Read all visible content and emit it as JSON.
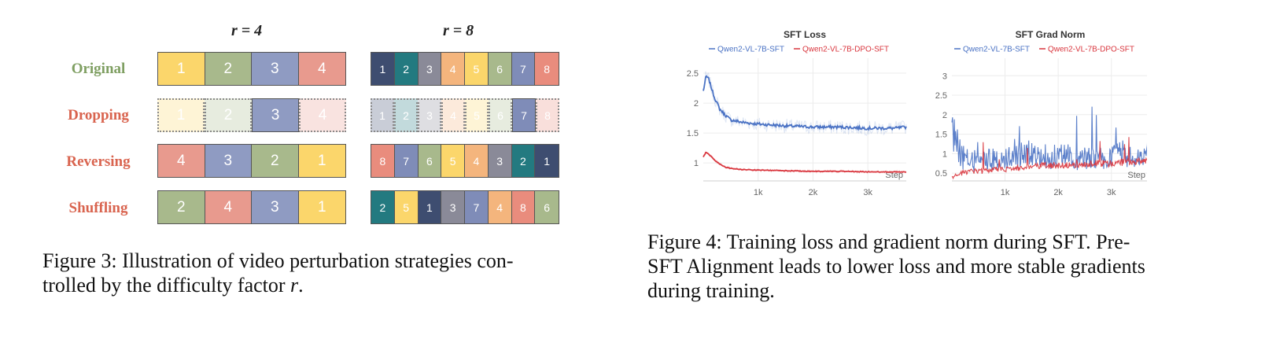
{
  "fig3": {
    "r4_label": "r = 4",
    "r8_label": "r = 8",
    "palette": {
      "c1": "#fbd66b",
      "c2": "#a8b98c",
      "c3": "#8f9bc2",
      "c4": "#e89a8e",
      "k1": "#3e4d70",
      "k2": "#237a80",
      "k3": "#8a8a98",
      "k4": "#f4b57d",
      "k5": "#fbd66b",
      "k6": "#a8b98c",
      "k7": "#7f8cb8",
      "k8": "#e98c7d"
    },
    "rows": [
      {
        "label": "Original",
        "color": "#7f9f62",
        "r4": [
          {
            "n": "1",
            "c": "c1"
          },
          {
            "n": "2",
            "c": "c2"
          },
          {
            "n": "3",
            "c": "c3"
          },
          {
            "n": "4",
            "c": "c4"
          }
        ],
        "r8": [
          {
            "n": "1",
            "c": "k1"
          },
          {
            "n": "2",
            "c": "k2"
          },
          {
            "n": "3",
            "c": "k3"
          },
          {
            "n": "4",
            "c": "k4"
          },
          {
            "n": "5",
            "c": "k5"
          },
          {
            "n": "6",
            "c": "k6"
          },
          {
            "n": "7",
            "c": "k7"
          },
          {
            "n": "8",
            "c": "k8"
          }
        ]
      },
      {
        "label": "Dropping",
        "color": "#d9644f",
        "r4": [
          {
            "n": "1",
            "c": "c1",
            "d": true
          },
          {
            "n": "2",
            "c": "c2",
            "d": true
          },
          {
            "n": "3",
            "c": "c3"
          },
          {
            "n": "4",
            "c": "c4",
            "d": true
          }
        ],
        "r8": [
          {
            "n": "1",
            "c": "k1",
            "d": true
          },
          {
            "n": "2",
            "c": "k2",
            "d": true
          },
          {
            "n": "3",
            "c": "k3",
            "d": true
          },
          {
            "n": "4",
            "c": "k4",
            "d": true
          },
          {
            "n": "5",
            "c": "k5",
            "d": true
          },
          {
            "n": "6",
            "c": "k6",
            "d": true
          },
          {
            "n": "7",
            "c": "k7"
          },
          {
            "n": "8",
            "c": "k8",
            "d": true
          }
        ]
      },
      {
        "label": "Reversing",
        "color": "#d9644f",
        "r4": [
          {
            "n": "4",
            "c": "c4"
          },
          {
            "n": "3",
            "c": "c3"
          },
          {
            "n": "2",
            "c": "c2"
          },
          {
            "n": "1",
            "c": "c1"
          }
        ],
        "r8": [
          {
            "n": "8",
            "c": "k8"
          },
          {
            "n": "7",
            "c": "k7"
          },
          {
            "n": "6",
            "c": "k6"
          },
          {
            "n": "5",
            "c": "k5"
          },
          {
            "n": "4",
            "c": "k4"
          },
          {
            "n": "3",
            "c": "k3"
          },
          {
            "n": "2",
            "c": "k2"
          },
          {
            "n": "1",
            "c": "k1"
          }
        ]
      },
      {
        "label": "Shuffling",
        "color": "#d9644f",
        "r4": [
          {
            "n": "2",
            "c": "c2"
          },
          {
            "n": "4",
            "c": "c4"
          },
          {
            "n": "3",
            "c": "c3"
          },
          {
            "n": "1",
            "c": "c1"
          }
        ],
        "r8": [
          {
            "n": "2",
            "c": "k2"
          },
          {
            "n": "5",
            "c": "k5"
          },
          {
            "n": "1",
            "c": "k1"
          },
          {
            "n": "3",
            "c": "k3"
          },
          {
            "n": "7",
            "c": "k7"
          },
          {
            "n": "4",
            "c": "k4"
          },
          {
            "n": "8",
            "c": "k8"
          },
          {
            "n": "6",
            "c": "k6"
          }
        ]
      }
    ],
    "caption_line1": "Figure 3: Illustration of video perturbation strategies con-",
    "caption_line2": "trolled by the difficulty factor ",
    "caption_var": "r",
    "caption_end": "."
  },
  "fig4": {
    "caption_line1": "Figure 4: Training loss and gradient norm during SFT. Pre-",
    "caption_line2": "SFT Alignment leads to lower loss and more stable gradients",
    "caption_line3": "during training."
  },
  "chart_data": [
    {
      "type": "line",
      "title": "SFT Loss",
      "xlabel": "Step",
      "ylabel": "",
      "xlim": [
        0,
        3700
      ],
      "ylim": [
        0.7,
        2.75
      ],
      "xticks": [
        {
          "v": 1000,
          "label": "1k"
        },
        {
          "v": 2000,
          "label": "2k"
        },
        {
          "v": 3000,
          "label": "3k"
        }
      ],
      "yticks": [
        {
          "v": 1,
          "label": "1"
        },
        {
          "v": 1.5,
          "label": "1.5"
        },
        {
          "v": 2,
          "label": "2"
        },
        {
          "v": 2.5,
          "label": "2.5"
        }
      ],
      "grid": true,
      "legend_position": "top",
      "series": [
        {
          "name": "Qwen2-VL-7B-SFT",
          "color": "#4a72c4",
          "x": [
            0,
            50,
            100,
            200,
            300,
            400,
            500,
            700,
            1000,
            1500,
            2000,
            2500,
            3000,
            3500,
            3700
          ],
          "y": [
            2.2,
            2.45,
            2.4,
            2.1,
            1.9,
            1.8,
            1.72,
            1.68,
            1.65,
            1.62,
            1.6,
            1.6,
            1.58,
            1.58,
            1.6
          ]
        },
        {
          "name": "Qwen2-VL-7B-DPO-SFT",
          "color": "#d9363e",
          "x": [
            0,
            50,
            100,
            200,
            300,
            400,
            500,
            700,
            1000,
            1500,
            2000,
            2500,
            3000,
            3500,
            3700
          ],
          "y": [
            1.1,
            1.18,
            1.15,
            1.05,
            0.98,
            0.93,
            0.91,
            0.89,
            0.88,
            0.87,
            0.86,
            0.86,
            0.85,
            0.85,
            0.85
          ]
        }
      ]
    },
    {
      "type": "line",
      "title": "SFT Grad Norm",
      "xlabel": "Step",
      "ylabel": "",
      "xlim": [
        0,
        3700
      ],
      "ylim": [
        0.3,
        3.45
      ],
      "xticks": [
        {
          "v": 1000,
          "label": "1k"
        },
        {
          "v": 2000,
          "label": "2k"
        },
        {
          "v": 3000,
          "label": "3k"
        }
      ],
      "yticks": [
        {
          "v": 0.5,
          "label": "0.5"
        },
        {
          "v": 1,
          "label": "1"
        },
        {
          "v": 1.5,
          "label": "1.5"
        },
        {
          "v": 2,
          "label": "2"
        },
        {
          "v": 2.5,
          "label": "2.5"
        },
        {
          "v": 3,
          "label": "3"
        }
      ],
      "grid": true,
      "legend_position": "top",
      "series": [
        {
          "name": "Qwen2-VL-7B-SFT",
          "color": "#4a72c4",
          "x": [
            0,
            200,
            400,
            600,
            800,
            1000,
            1200,
            1400,
            1600,
            1800,
            2000,
            2200,
            2400,
            2600,
            2800,
            3000,
            3200,
            3400,
            3600,
            3700
          ],
          "y": [
            1.6,
            0.9,
            0.8,
            0.9,
            0.85,
            0.85,
            0.9,
            1.0,
            1.1,
            0.9,
            0.9,
            0.95,
            0.85,
            0.9,
            0.95,
            0.9,
            1.0,
            0.9,
            0.95,
            0.9
          ]
        },
        {
          "name": "Qwen2-VL-7B-DPO-SFT",
          "color": "#d9363e",
          "x": [
            0,
            200,
            400,
            600,
            800,
            1000,
            1200,
            1400,
            1600,
            1800,
            2000,
            2200,
            2400,
            2600,
            2800,
            3000,
            3200,
            3400,
            3600,
            3700
          ],
          "y": [
            0.4,
            0.5,
            0.55,
            0.55,
            0.6,
            0.6,
            0.62,
            0.65,
            0.68,
            0.7,
            0.7,
            0.72,
            0.72,
            0.75,
            0.75,
            0.75,
            0.78,
            0.78,
            0.8,
            0.8
          ]
        }
      ]
    }
  ]
}
